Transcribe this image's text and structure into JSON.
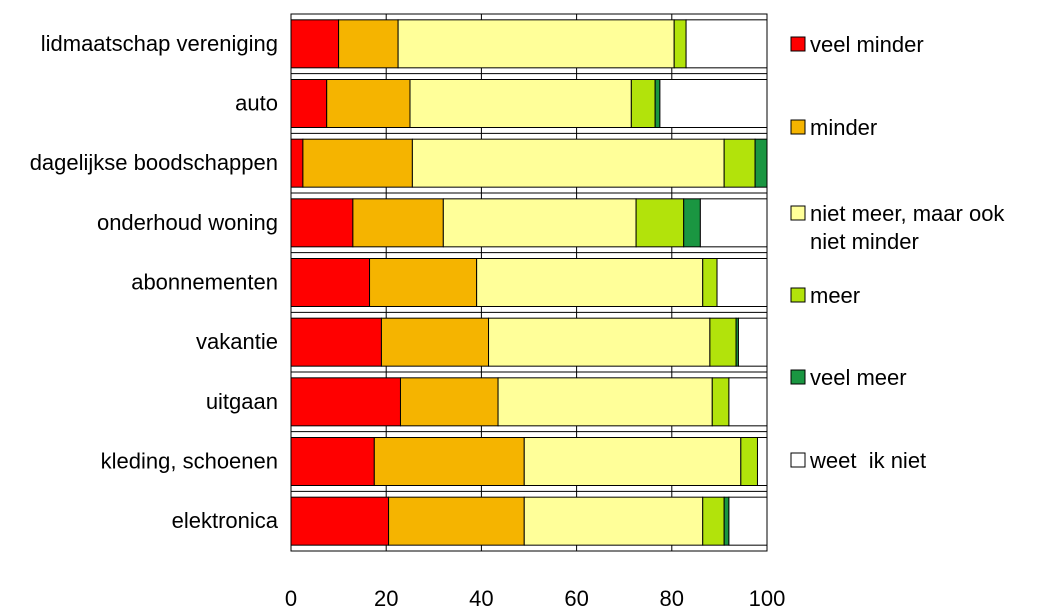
{
  "chart_data": {
    "type": "bar",
    "orientation": "horizontal",
    "stacked": true,
    "title": "",
    "xlabel": "",
    "ylabel": "",
    "xlim": [
      0,
      100
    ],
    "x_ticks": [
      "0",
      "20",
      "40",
      "60",
      "80",
      "100"
    ],
    "grid": true,
    "legend_position": "right",
    "categories": [
      "lidmaatschap vereniging",
      "auto",
      "dagelijkse boodschappen",
      "onderhoud woning",
      "abonnementen",
      "vakantie",
      "uitgaan",
      "kleding, schoenen",
      "elektronica"
    ],
    "series": [
      {
        "name": "veel minder",
        "color": "#ff0000",
        "values": [
          10,
          7.5,
          2.5,
          13,
          16.5,
          19,
          23,
          17.5,
          20.5
        ]
      },
      {
        "name": "minder",
        "color": "#f5b400",
        "values": [
          12.5,
          17.5,
          23,
          19,
          22.5,
          22.5,
          20.5,
          31.5,
          28.5
        ]
      },
      {
        "name": "niet meer, maar ook niet minder",
        "color": "#ffff99",
        "values": [
          58,
          46.5,
          65.5,
          40.5,
          47.5,
          46.5,
          45,
          45.5,
          37.5
        ]
      },
      {
        "name": "meer",
        "color": "#b2e30b",
        "values": [
          2.5,
          5,
          6.5,
          10,
          3,
          5.5,
          3.5,
          3.5,
          4.5
        ]
      },
      {
        "name": "veel meer",
        "color": "#1a9641",
        "values": [
          0,
          1,
          2.5,
          3.5,
          0,
          0.5,
          0,
          0,
          1
        ]
      },
      {
        "name": "weet  ik niet",
        "color": "#ffffff",
        "values": [
          17,
          22.5,
          0,
          14,
          10.5,
          6,
          8,
          2,
          8
        ]
      }
    ]
  }
}
